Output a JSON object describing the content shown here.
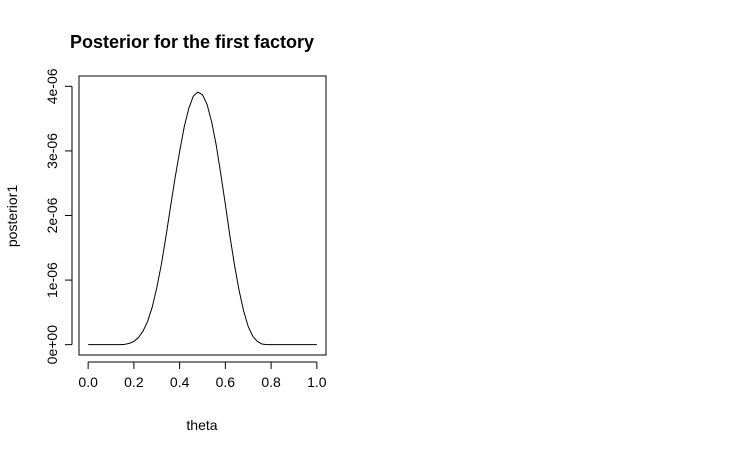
{
  "chart_data": {
    "type": "line",
    "title": "Posterior for the first factory",
    "xlabel": "theta",
    "ylabel": "posterior1",
    "xlim": [
      -0.04,
      1.04
    ],
    "ylim": [
      -1.6e-07,
      4.16e-06
    ],
    "x_ticks": [
      0.0,
      0.2,
      0.4,
      0.6,
      0.8,
      1.0
    ],
    "x_tick_labels": [
      "0.0",
      "0.2",
      "0.4",
      "0.6",
      "0.8",
      "1.0"
    ],
    "y_ticks": [
      0,
      1e-06,
      2e-06,
      3e-06,
      4e-06
    ],
    "y_tick_labels": [
      "0e+00",
      "1e-06",
      "2e-06",
      "3e-06",
      "4e-06"
    ],
    "grid": false,
    "legend": "none",
    "line_color": "#000000",
    "series": [
      {
        "x": [
          0.0,
          0.02,
          0.04,
          0.06,
          0.08,
          0.1,
          0.12,
          0.14,
          0.16,
          0.18,
          0.2,
          0.22,
          0.24,
          0.26,
          0.28,
          0.3,
          0.32,
          0.34,
          0.36,
          0.38,
          0.4,
          0.42,
          0.44,
          0.46,
          0.48,
          0.5,
          0.52,
          0.54,
          0.56,
          0.58,
          0.6,
          0.62,
          0.64,
          0.66,
          0.68,
          0.7,
          0.72,
          0.74,
          0.76,
          0.78,
          0.8,
          0.82,
          0.84,
          0.86,
          0.88,
          0.9,
          0.92,
          0.94,
          0.96,
          0.98,
          1.0
        ],
        "y": [
          0,
          0,
          0,
          0,
          0,
          0,
          0,
          0,
          5e-09,
          2e-08,
          5e-08,
          1.1e-07,
          2.1e-07,
          3.6e-07,
          5.8e-07,
          8.8e-07,
          1.24e-06,
          1.67e-06,
          2.13e-06,
          2.58e-06,
          2.99e-06,
          3.37e-06,
          3.66e-06,
          3.85e-06,
          3.91e-06,
          3.87e-06,
          3.72e-06,
          3.45e-06,
          3.09e-06,
          2.64e-06,
          2.17e-06,
          1.68e-06,
          1.23e-06,
          8.4e-07,
          5.2e-07,
          2.8e-07,
          1.3e-07,
          5e-08,
          1e-08,
          0,
          0,
          0,
          0,
          0,
          0,
          0,
          0,
          0,
          0,
          0,
          0
        ]
      }
    ]
  }
}
